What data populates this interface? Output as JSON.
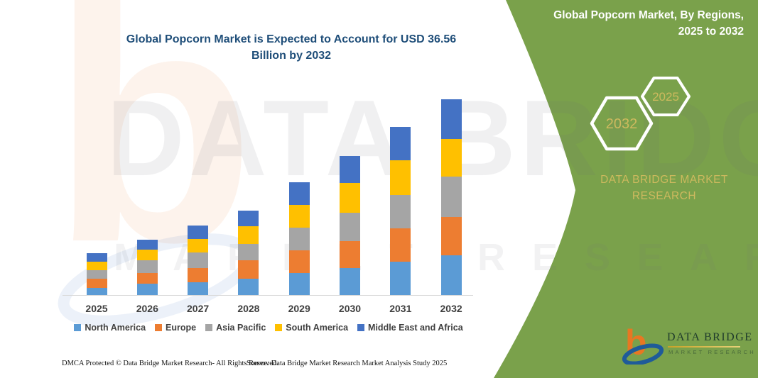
{
  "title": {
    "text": "Global Popcorn Market is Expected to Account for USD 36.56\nBillion by 2032",
    "color": "#1F4E79"
  },
  "chart_data": {
    "type": "bar",
    "stacked": true,
    "title": "Global Popcorn Market is Expected to Account for USD 36.56 Billion by 2032",
    "unit": "USD Billion",
    "categories": [
      "2025",
      "2026",
      "2027",
      "2028",
      "2029",
      "2030",
      "2031",
      "2032"
    ],
    "series": [
      {
        "name": "North America",
        "color": "#5B9BD5",
        "values": [
          1.33,
          2.12,
          2.43,
          3.09,
          4.07,
          5.08,
          6.19,
          7.39
        ]
      },
      {
        "name": "Europe",
        "color": "#ED7D31",
        "values": [
          1.68,
          1.99,
          2.65,
          3.45,
          4.33,
          4.95,
          6.32,
          7.2
        ]
      },
      {
        "name": "Asia Pacific",
        "color": "#A5A5A5",
        "values": [
          1.68,
          2.35,
          2.92,
          2.96,
          4.2,
          5.3,
          6.19,
          7.52
        ]
      },
      {
        "name": "South America",
        "color": "#FFC000",
        "values": [
          1.5,
          2.08,
          2.52,
          3.32,
          4.2,
          5.57,
          6.5,
          7.06
        ]
      },
      {
        "name": "Middle East and Africa",
        "color": "#4472C4",
        "values": [
          1.59,
          1.86,
          2.52,
          2.96,
          4.33,
          5.08,
          6.19,
          7.39
        ]
      }
    ],
    "totals": [
      7.78,
      10.4,
      13.04,
      15.78,
      21.13,
      25.98,
      31.39,
      36.56
    ],
    "xlabel": "",
    "ylabel": "",
    "ylim": [
      0,
      36.56
    ],
    "grid": false,
    "legend_position": "bottom"
  },
  "panel": {
    "background": "#7AA14B",
    "header": "Global Popcorn Market, By Regions,\n2025 to 2032",
    "hexagons": [
      {
        "label": "2032"
      },
      {
        "label": "2025"
      }
    ],
    "brand_text": "DATA BRIDGE MARKET\nRESEARCH",
    "brand_text_color": "#CDB95E",
    "logo": {
      "line1": "DATA BRIDGE",
      "line2": "MARKET RESEARCH",
      "orange": "#E87722",
      "blue": "#1F5B99"
    }
  },
  "watermark": {
    "letter": "b",
    "line1": "DATA BRIDGE",
    "line2": "MARKET RESEARCH"
  },
  "footer": {
    "left": "DMCA Protected © Data Bridge Market Research-  All Rights Reserved.",
    "right": "Source: Data Bridge Market Research  Market Analysis Study 2025"
  }
}
